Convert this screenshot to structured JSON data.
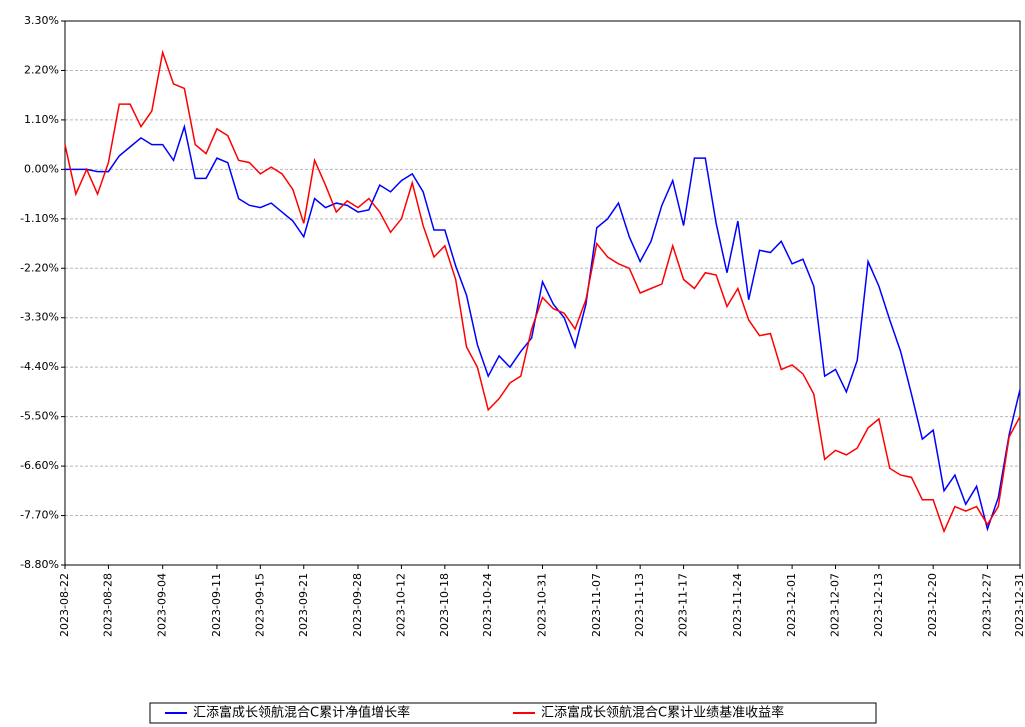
{
  "chart_data": {
    "type": "line",
    "categories": [
      "2023-08-22",
      null,
      null,
      null,
      "2023-08-28",
      null,
      null,
      null,
      null,
      "2023-09-04",
      null,
      null,
      null,
      null,
      "2023-09-11",
      null,
      null,
      null,
      "2023-09-15",
      null,
      null,
      null,
      "2023-09-21",
      null,
      null,
      null,
      null,
      "2023-09-28",
      null,
      null,
      null,
      "2023-10-12",
      null,
      null,
      null,
      "2023-10-18",
      null,
      null,
      null,
      "2023-10-24",
      null,
      null,
      null,
      null,
      "2023-10-31",
      null,
      null,
      null,
      null,
      "2023-11-07",
      null,
      null,
      null,
      "2023-11-13",
      null,
      null,
      null,
      "2023-11-17",
      null,
      null,
      null,
      null,
      "2023-11-24",
      null,
      null,
      null,
      null,
      "2023-12-01",
      null,
      null,
      null,
      "2023-12-07",
      null,
      null,
      null,
      "2023-12-13",
      null,
      null,
      null,
      null,
      "2023-12-20",
      null,
      null,
      null,
      null,
      "2023-12-27",
      null,
      null,
      "2023-12-31"
    ],
    "series": [
      {
        "name": "汇添富成长领航混合C累计净值增长率",
        "color": "#0000ff",
        "values": [
          0.0,
          0.0,
          0.0,
          -0.05,
          -0.05,
          0.3,
          0.5,
          0.7,
          0.55,
          0.55,
          0.2,
          0.95,
          -0.2,
          -0.2,
          0.25,
          0.15,
          -0.65,
          -0.8,
          -0.85,
          -0.75,
          -0.95,
          -1.15,
          -1.5,
          -0.65,
          -0.85,
          -0.75,
          -0.8,
          -0.95,
          -0.9,
          -0.35,
          -0.5,
          -0.25,
          -0.1,
          -0.5,
          -1.35,
          -1.35,
          -2.15,
          -2.8,
          -3.9,
          -4.6,
          -4.15,
          -4.4,
          -4.05,
          -3.75,
          -2.5,
          -3.0,
          -3.3,
          -3.95,
          -3.0,
          -1.3,
          -1.1,
          -0.75,
          -1.5,
          -2.05,
          -1.6,
          -0.8,
          -0.25,
          -1.25,
          0.25,
          0.25,
          -1.2,
          -2.3,
          -1.15,
          -2.9,
          -1.8,
          -1.85,
          -1.6,
          -2.1,
          -2.0,
          -2.6,
          -4.6,
          -4.45,
          -4.95,
          -4.25,
          -2.05,
          -2.6,
          -3.35,
          -4.05,
          -5.0,
          -6.0,
          -5.8,
          -7.15,
          -6.8,
          -7.45,
          -7.05,
          -8.0,
          -7.3,
          -5.9,
          -4.9
        ]
      },
      {
        "name": "汇添富成长领航混合C累计业绩基准收益率",
        "color": "#ff0000",
        "values": [
          0.55,
          -0.55,
          0.0,
          -0.55,
          0.15,
          1.45,
          1.45,
          0.95,
          1.3,
          2.6,
          1.9,
          1.8,
          0.55,
          0.35,
          0.9,
          0.75,
          0.2,
          0.15,
          -0.1,
          0.05,
          -0.1,
          -0.45,
          -1.2,
          0.2,
          -0.35,
          -0.95,
          -0.7,
          -0.85,
          -0.65,
          -0.95,
          -1.4,
          -1.1,
          -0.3,
          -1.25,
          -1.95,
          -1.7,
          -2.45,
          -3.95,
          -4.4,
          -5.35,
          -5.1,
          -4.75,
          -4.6,
          -3.55,
          -2.85,
          -3.1,
          -3.2,
          -3.55,
          -2.9,
          -1.65,
          -1.95,
          -2.1,
          -2.2,
          -2.75,
          -2.65,
          -2.55,
          -1.7,
          -2.45,
          -2.65,
          -2.3,
          -2.35,
          -3.05,
          -2.65,
          -3.35,
          -3.7,
          -3.65,
          -4.45,
          -4.35,
          -4.55,
          -5.0,
          -6.45,
          -6.25,
          -6.35,
          -6.2,
          -5.75,
          -5.55,
          -6.65,
          -6.8,
          -6.85,
          -7.35,
          -7.35,
          -8.05,
          -7.5,
          -7.6,
          -7.5,
          -7.9,
          -7.5,
          -5.95,
          -5.5
        ]
      }
    ],
    "ylim": [
      -8.8,
      3.3
    ],
    "yticks": [
      {
        "value": 3.3,
        "label": "3.30%"
      },
      {
        "value": 2.2,
        "label": "2.20%"
      },
      {
        "value": 1.1,
        "label": "1.10%"
      },
      {
        "value": 0,
        "label": "0.00%"
      },
      {
        "value": -1.1,
        "label": "-1.10%"
      },
      {
        "value": -2.2,
        "label": "-2.20%"
      },
      {
        "value": -3.3,
        "label": "-3.30%"
      },
      {
        "value": -4.4,
        "label": "-4.40%"
      },
      {
        "value": -5.5,
        "label": "-5.50%"
      },
      {
        "value": -6.6,
        "label": "-6.60%"
      },
      {
        "value": -7.7,
        "label": "-7.70%"
      },
      {
        "value": -8.8,
        "label": "-8.80%"
      }
    ],
    "grid": true,
    "legend": "bottom"
  }
}
